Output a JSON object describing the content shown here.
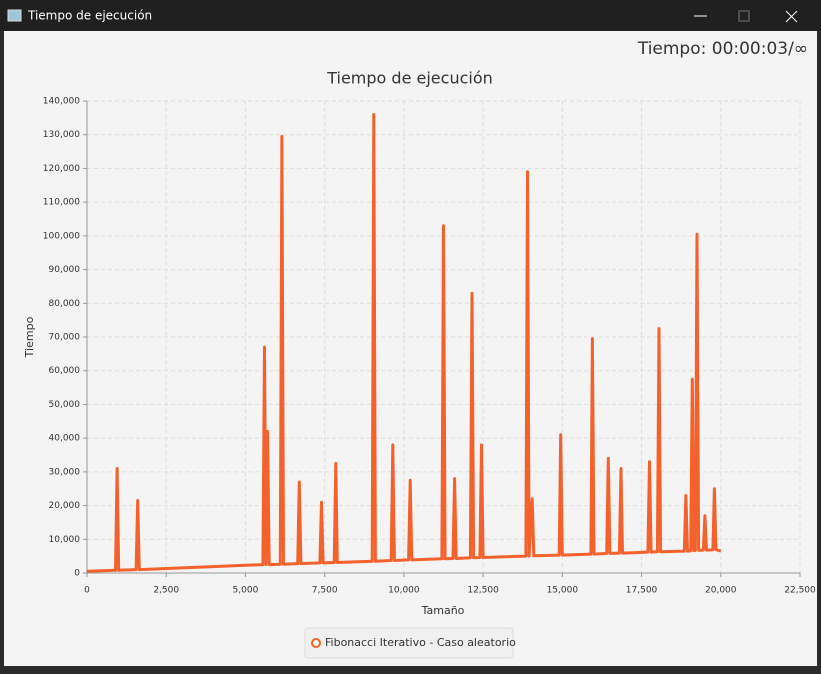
{
  "window": {
    "title": "Tiempo de ejecución",
    "timer": "Tiempo: 00:00:03/∞"
  },
  "chart_data": {
    "type": "line",
    "title": "Tiempo de ejecución",
    "x_label": "Tamaño",
    "y_label": "Tiempo",
    "x": [
      0,
      900,
      950,
      1000,
      1550,
      1600,
      1650,
      5550,
      5600,
      5650,
      5700,
      5750,
      6100,
      6150,
      6200,
      6650,
      6700,
      6750,
      7350,
      7400,
      7450,
      7800,
      7850,
      7900,
      9000,
      9050,
      9100,
      9600,
      9650,
      9700,
      10150,
      10200,
      10250,
      11200,
      11250,
      11300,
      11550,
      11600,
      11650,
      12100,
      12150,
      12200,
      12400,
      12450,
      12500,
      13850,
      13900,
      13950,
      14050,
      14100,
      14900,
      14950,
      15000,
      15900,
      15950,
      16000,
      16400,
      16450,
      16500,
      16800,
      16850,
      16900,
      17700,
      17750,
      17800,
      18000,
      18050,
      18100,
      18850,
      18900,
      18950,
      19050,
      19100,
      19150,
      19200,
      19250,
      19300,
      19450,
      19500,
      19550,
      19750,
      19800,
      19850,
      20000
    ],
    "series": [
      {
        "name": "Fibonacci Iterativo - Caso aleatorio",
        "color": "#f3622d",
        "values": [
          500,
          800,
          31000,
          800,
          1000,
          21500,
          1000,
          2500,
          67000,
          2500,
          42000,
          2500,
          2600,
          129500,
          2600,
          2800,
          27000,
          2800,
          3000,
          21000,
          3000,
          3100,
          32500,
          3100,
          3500,
          136000,
          3500,
          3700,
          38000,
          3700,
          3900,
          27500,
          3900,
          4200,
          103000,
          4200,
          4300,
          28000,
          4300,
          4500,
          83000,
          4500,
          4600,
          38000,
          4600,
          5000,
          119000,
          5000,
          22000,
          5100,
          5300,
          41000,
          5300,
          5600,
          69500,
          5600,
          5800,
          34000,
          5800,
          5900,
          31000,
          5900,
          6200,
          33000,
          6200,
          6300,
          72500,
          6300,
          6500,
          23000,
          6500,
          6600,
          57500,
          6600,
          6700,
          100500,
          6700,
          6800,
          17000,
          6800,
          6900,
          25000,
          6900,
          6500
        ]
      }
    ],
    "xlim": [
      0,
      22500
    ],
    "xticks": [
      0,
      {
        "value": 2500,
        "label": "2,500"
      },
      {
        "value": 5000,
        "label": "5,000"
      },
      {
        "value": 7500,
        "label": "7,500"
      },
      {
        "value": 10000,
        "label": "10,000"
      },
      {
        "value": 12500,
        "label": "12,500"
      },
      {
        "value": 15000,
        "label": "15,000"
      },
      {
        "value": 17500,
        "label": "17,500"
      },
      {
        "value": 20000,
        "label": "20,000"
      },
      {
        "value": 22500,
        "label": "22,500"
      }
    ],
    "ylim": [
      0,
      140000
    ],
    "yticks": [
      0,
      {
        "value": 10000,
        "label": "10,000"
      },
      {
        "value": 20000,
        "label": "20,000"
      },
      {
        "value": 30000,
        "label": "30,000"
      },
      {
        "value": 40000,
        "label": "40,000"
      },
      {
        "value": 50000,
        "label": "50,000"
      },
      {
        "value": 60000,
        "label": "60,000"
      },
      {
        "value": 70000,
        "label": "70,000"
      },
      {
        "value": 80000,
        "label": "80,000"
      },
      {
        "value": 90000,
        "label": "90,000"
      },
      {
        "value": 100000,
        "label": "100,000"
      },
      {
        "value": 110000,
        "label": "110,000"
      },
      {
        "value": 120000,
        "label": "120,000"
      },
      {
        "value": 130000,
        "label": "130,000"
      },
      {
        "value": 140000,
        "label": "140,000"
      }
    ],
    "grid": true
  }
}
